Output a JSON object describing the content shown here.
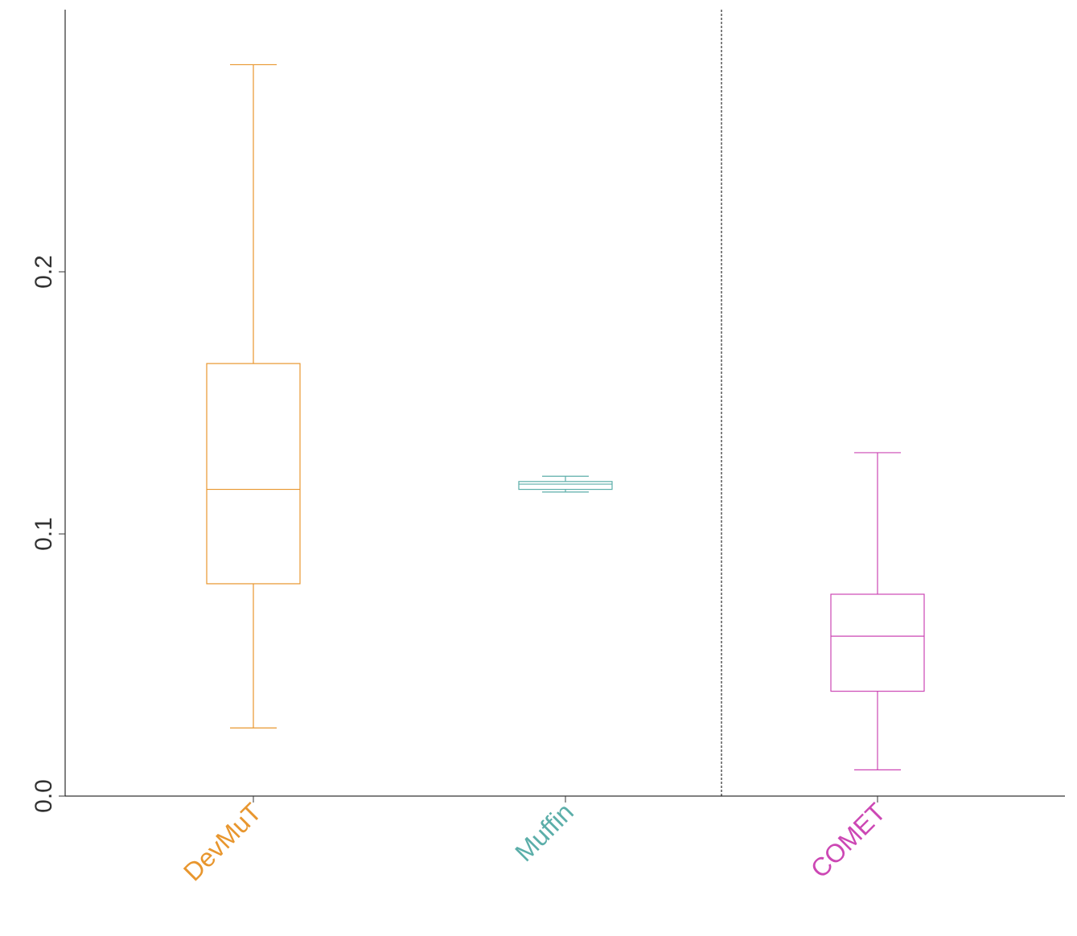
{
  "chart_data": {
    "type": "box",
    "title": "",
    "xlabel": "",
    "ylabel": "",
    "ylim": [
      0,
      0.3
    ],
    "y_ticks": [
      "0.0",
      "0.1",
      "0.2"
    ],
    "y_tick_values": [
      0.0,
      0.1,
      0.2
    ],
    "grid": false,
    "legend": "none",
    "categories": [
      "DevMuT",
      "Muffin",
      "COMET"
    ],
    "colors": [
      "#E8962E",
      "#5BAEA9",
      "#CC47B4"
    ],
    "boxes": [
      {
        "category": "DevMuT",
        "whisker_low": 0.026,
        "q1": 0.081,
        "median": 0.117,
        "q3": 0.165,
        "whisker_high": 0.279
      },
      {
        "category": "Muffin",
        "whisker_low": 0.116,
        "q1": 0.117,
        "median": 0.119,
        "q3": 0.12,
        "whisker_high": 0.122
      },
      {
        "category": "COMET",
        "whisker_low": 0.01,
        "q1": 0.04,
        "median": 0.061,
        "q3": 0.077,
        "whisker_high": 0.131
      }
    ],
    "separator_after_category": "Muffin",
    "separator_style": "dashed"
  }
}
